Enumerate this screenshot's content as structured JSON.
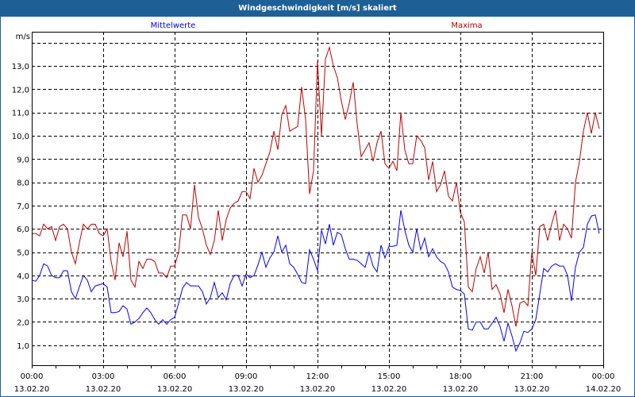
{
  "window": {
    "title": "Windgeschwindigkeit [m/s] skaliert"
  },
  "colors": {
    "titlebar": "#1e5f96",
    "mean": "#0000ff",
    "max": "#c00000",
    "grid": "#000000"
  },
  "chart_data": {
    "type": "line",
    "title": "Windgeschwindigkeit [m/s] skaliert",
    "ylabel": "m/s",
    "xlabel": "",
    "ylim": [
      0.14,
      14.47
    ],
    "y_ticks": [
      1,
      2,
      3,
      4,
      5,
      6,
      7,
      8,
      9,
      10,
      11,
      12,
      13
    ],
    "y_tick_labels": [
      "1,0",
      "2,0",
      "3,0",
      "4,0",
      "5,0",
      "6,0",
      "7,0",
      "8,0",
      "9,0",
      "10,0",
      "11,0",
      "12,0",
      "13,0"
    ],
    "y_gridlines": [
      1,
      2,
      3,
      4,
      5,
      6,
      7,
      8,
      9,
      10,
      11,
      12,
      13,
      14
    ],
    "x_range_hours": [
      0,
      24
    ],
    "x_ticks_hours": [
      0,
      3,
      6,
      9,
      12,
      15,
      18,
      21,
      24
    ],
    "x_tick_labels": [
      {
        "time": "00:00",
        "date": "13.02.20"
      },
      {
        "time": "03:00",
        "date": "13.02.20"
      },
      {
        "time": "06:00",
        "date": "13.02.20"
      },
      {
        "time": "09:00",
        "date": "13.02.20"
      },
      {
        "time": "12:00",
        "date": "13.02.20"
      },
      {
        "time": "15:00",
        "date": "13.02.20"
      },
      {
        "time": "18:00",
        "date": "13.02.20"
      },
      {
        "time": "21:00",
        "date": "13.02.20"
      },
      {
        "time": "00:00",
        "date": "14.02.20"
      }
    ],
    "grid": true,
    "interval_minutes": 10,
    "series": [
      {
        "name": "Mittelwerte",
        "color": "#0000ff",
        "values": [
          3.8,
          3.75,
          4.0,
          4.5,
          4.4,
          4.0,
          3.9,
          3.9,
          4.2,
          4.2,
          3.3,
          3.0,
          3.5,
          4.0,
          3.8,
          3.3,
          3.55,
          3.6,
          3.65,
          3.5,
          2.4,
          2.4,
          2.45,
          2.7,
          2.55,
          1.9,
          2.0,
          2.15,
          2.4,
          2.6,
          2.4,
          2.1,
          1.9,
          2.1,
          1.9,
          2.1,
          2.2,
          2.8,
          3.45,
          3.7,
          3.55,
          3.55,
          3.55,
          3.3,
          2.77,
          3.05,
          3.7,
          3.05,
          3.25,
          2.95,
          3.65,
          4.0,
          4.0,
          3.55,
          4.05,
          3.9,
          4.0,
          4.45,
          5.0,
          4.35,
          4.75,
          5.0,
          5.7,
          5.0,
          5.3,
          4.5,
          4.35,
          4.05,
          3.7,
          3.65,
          5.1,
          4.7,
          4.2,
          5.95,
          5.35,
          6.2,
          5.3,
          5.85,
          5.75,
          5.15,
          4.7,
          4.7,
          4.65,
          4.5,
          4.35,
          5.0,
          4.4,
          4.15,
          5.3,
          4.75,
          5.25,
          5.25,
          5.3,
          6.8,
          5.95,
          5.3,
          5.0,
          6.0,
          5.1,
          5.6,
          4.8,
          5.15,
          4.8,
          4.6,
          4.5,
          4.15,
          3.5,
          3.4,
          3.35,
          3.2,
          1.7,
          1.65,
          2.0,
          2.0,
          1.7,
          1.7,
          1.95,
          2.2,
          1.8,
          1.17,
          1.95,
          1.4,
          0.75,
          1.1,
          1.6,
          1.55,
          1.7,
          2.1,
          3.2,
          4.3,
          4.15,
          4.4,
          4.5,
          4.4,
          4.4,
          4.0,
          2.9,
          4.35,
          5.0,
          5.2,
          6.2,
          6.55,
          6.6,
          5.8
        ]
      },
      {
        "name": "Maxima",
        "color": "#c00000",
        "values": [
          5.8,
          5.8,
          5.7,
          6.2,
          6.0,
          6.1,
          5.5,
          6.1,
          6.2,
          6.0,
          5.0,
          4.5,
          5.4,
          6.2,
          6.0,
          6.2,
          6.2,
          5.8,
          5.7,
          6.0,
          4.6,
          3.8,
          5.4,
          4.8,
          5.9,
          3.8,
          3.5,
          4.6,
          4.3,
          4.7,
          4.7,
          4.6,
          4.1,
          4.1,
          3.9,
          4.4,
          4.4,
          5.0,
          6.6,
          6.6,
          6.0,
          7.9,
          6.5,
          6.0,
          5.3,
          4.9,
          5.5,
          6.8,
          5.5,
          6.4,
          6.9,
          7.1,
          7.2,
          7.6,
          7.6,
          7.3,
          8.6,
          8.0,
          8.3,
          8.8,
          9.3,
          10.2,
          9.4,
          10.9,
          11.3,
          10.2,
          10.3,
          10.4,
          12.1,
          10.7,
          7.5,
          8.5,
          13.2,
          10.0,
          13.3,
          13.8,
          13.0,
          12.5,
          11.5,
          10.7,
          11.4,
          12.3,
          10.5,
          9.1,
          9.4,
          9.7,
          8.9,
          9.7,
          10.2,
          8.8,
          8.6,
          8.9,
          8.5,
          11.0,
          9.4,
          8.8,
          8.8,
          10.0,
          9.8,
          9.5,
          8.1,
          8.9,
          7.6,
          7.9,
          8.5,
          7.4,
          7.2,
          8.0,
          6.7,
          6.3,
          3.5,
          3.3,
          4.3,
          4.8,
          4.1,
          5.0,
          3.4,
          3.6,
          3.2,
          2.4,
          3.4,
          2.7,
          1.8,
          2.8,
          2.9,
          2.7,
          5.0,
          4.0,
          6.1,
          6.2,
          5.5,
          6.2,
          6.8,
          5.5,
          6.2,
          6.0,
          5.6,
          8.0,
          8.9,
          10.2,
          11.0,
          10.1,
          11.0,
          10.3
        ]
      }
    ]
  }
}
